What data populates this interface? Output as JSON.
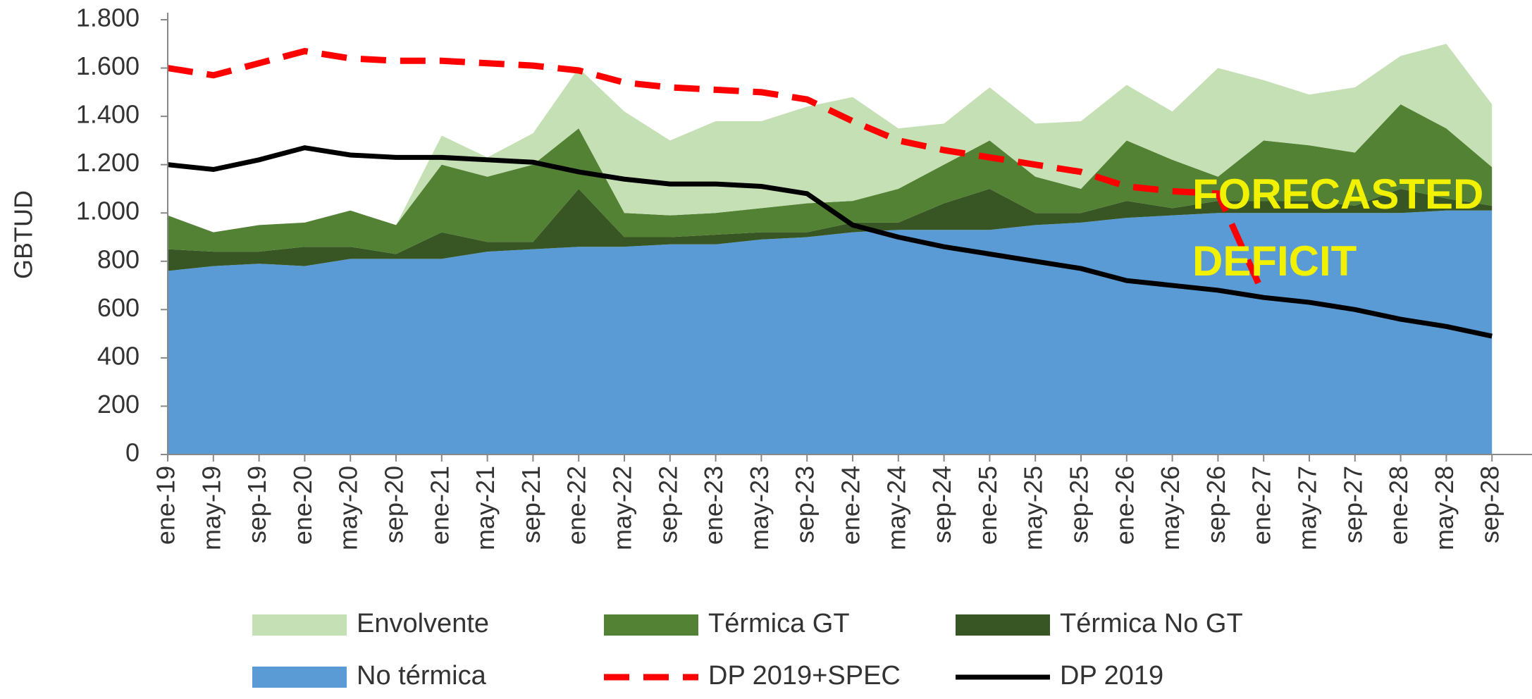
{
  "chart_data": {
    "type": "stacked_area",
    "y_label": "GBTUD",
    "annotations": [
      "FORECASTED",
      "DEFICIT"
    ],
    "categories": [
      "ene-19",
      "may-19",
      "sep-19",
      "ene-20",
      "may-20",
      "sep-20",
      "ene-21",
      "may-21",
      "sep-21",
      "ene-22",
      "may-22",
      "sep-22",
      "ene-23",
      "may-23",
      "sep-23",
      "ene-24",
      "may-24",
      "sep-24",
      "ene-25",
      "may-25",
      "sep-25",
      "ene-26",
      "may-26",
      "sep-26",
      "ene-27",
      "may-27",
      "sep-27",
      "ene-28",
      "may-28",
      "sep-28"
    ],
    "series": [
      {
        "name": "No térmica",
        "color": "#5b9bd5",
        "kind": "area",
        "values": [
          760,
          780,
          790,
          780,
          810,
          810,
          810,
          840,
          850,
          860,
          860,
          870,
          870,
          890,
          900,
          920,
          930,
          930,
          930,
          950,
          960,
          980,
          990,
          1000,
          1000,
          1000,
          1000,
          1000,
          1010,
          1010
        ]
      },
      {
        "name": "Térmica No GT",
        "color": "#375623",
        "kind": "area",
        "values": [
          90,
          60,
          50,
          80,
          50,
          20,
          110,
          40,
          30,
          240,
          40,
          30,
          40,
          30,
          20,
          40,
          30,
          110,
          170,
          50,
          40,
          70,
          30,
          50,
          50,
          50,
          30,
          100,
          50,
          20
        ]
      },
      {
        "name": "Térmica GT",
        "color": "#548235",
        "kind": "area",
        "values": [
          140,
          80,
          110,
          100,
          150,
          120,
          280,
          270,
          320,
          250,
          100,
          90,
          90,
          100,
          120,
          90,
          140,
          160,
          200,
          150,
          100,
          250,
          200,
          100,
          250,
          230,
          220,
          350,
          290,
          160
        ]
      },
      {
        "name": "Envolvente",
        "color": "#c5e0b4",
        "kind": "area",
        "values": [
          0,
          0,
          0,
          0,
          0,
          0,
          120,
          80,
          130,
          250,
          420,
          310,
          380,
          360,
          400,
          430,
          250,
          170,
          220,
          220,
          280,
          230,
          200,
          450,
          250,
          210,
          270,
          200,
          350,
          260
        ]
      },
      {
        "name": "DP 2019+SPEC",
        "color": "#ff0000",
        "kind": "line",
        "dashed": true,
        "values": [
          1600,
          1570,
          1620,
          1670,
          1640,
          1630,
          1630,
          1620,
          1610,
          1590,
          1540,
          1520,
          1510,
          1500,
          1470,
          1380,
          1300,
          1260,
          1230,
          1200,
          1170,
          1110,
          1090,
          1080,
          660,
          null,
          null,
          null,
          null,
          null
        ]
      },
      {
        "name": "DP 2019",
        "color": "#000000",
        "kind": "line",
        "dashed": false,
        "values": [
          1200,
          1180,
          1220,
          1270,
          1240,
          1230,
          1230,
          1220,
          1210,
          1170,
          1140,
          1120,
          1120,
          1110,
          1080,
          950,
          900,
          860,
          830,
          800,
          770,
          720,
          700,
          680,
          650,
          630,
          600,
          560,
          530,
          490
        ]
      }
    ],
    "legend_order": [
      3,
      2,
      1,
      0,
      4,
      5
    ],
    "ylim": [
      0,
      1800
    ],
    "yticks": [
      0,
      200,
      400,
      600,
      800,
      {
        "value": 1000,
        "label": "1.000"
      },
      {
        "value": 1200,
        "label": "1.200"
      },
      {
        "value": 1400,
        "label": "1.400"
      },
      {
        "value": 1600,
        "label": "1.600"
      },
      {
        "value": 1800,
        "label": "1.800"
      }
    ]
  }
}
